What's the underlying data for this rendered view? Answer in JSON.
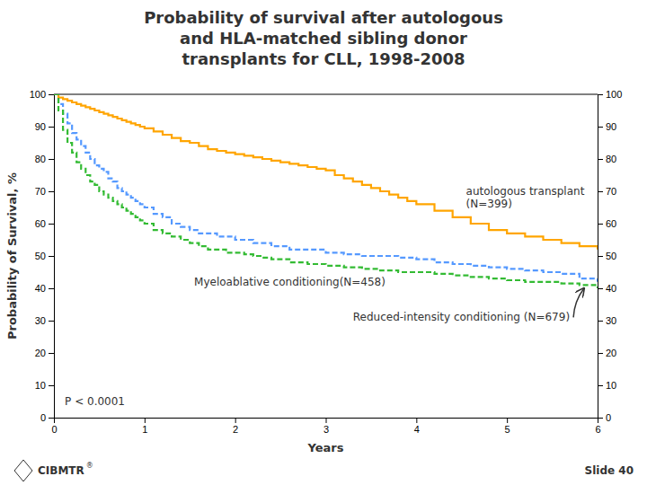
{
  "chart_data": {
    "type": "step",
    "title": "Probability of survival after autologous\nand HLA-matched sibling donor\ntransplants for CLL, 1998-2008",
    "xlabel": "Years",
    "ylabel": "Probability of Survival, %",
    "xlim": [
      0,
      6
    ],
    "ylim": [
      0,
      100
    ],
    "xticks": [
      0,
      1,
      2,
      3,
      4,
      5,
      6
    ],
    "yticks": [
      0,
      10,
      20,
      30,
      40,
      50,
      60,
      70,
      80,
      90,
      100
    ],
    "y2lim": [
      0,
      100
    ],
    "y2ticks": [
      0,
      10,
      20,
      30,
      40,
      50,
      60,
      70,
      80,
      90,
      100
    ],
    "grid": false,
    "annotations": [
      "P < 0.0001",
      "CIBMTR",
      "®",
      "Slide 40"
    ],
    "series": [
      {
        "name": "autologous transplant\n(N=399)",
        "color": "#FFA500",
        "line_style": "solid",
        "x": [
          0.0,
          0.05,
          0.1,
          0.15,
          0.2,
          0.25,
          0.3,
          0.35,
          0.4,
          0.45,
          0.5,
          0.55,
          0.6,
          0.65,
          0.7,
          0.75,
          0.8,
          0.85,
          0.9,
          0.95,
          1.0,
          1.1,
          1.2,
          1.3,
          1.4,
          1.5,
          1.6,
          1.7,
          1.8,
          1.9,
          2.0,
          2.1,
          2.2,
          2.3,
          2.4,
          2.5,
          2.6,
          2.7,
          2.8,
          2.9,
          3.0,
          3.1,
          3.2,
          3.3,
          3.4,
          3.5,
          3.6,
          3.7,
          3.8,
          3.9,
          4.0,
          4.2,
          4.4,
          4.6,
          4.8,
          5.0,
          5.2,
          5.4,
          5.6,
          5.8,
          6.0
        ],
        "values": [
          100,
          99,
          98.5,
          98,
          97.5,
          97,
          96.5,
          96,
          95.5,
          95,
          94.5,
          94,
          93.5,
          93,
          92.5,
          92,
          91.5,
          91,
          90.5,
          90,
          89.5,
          88.5,
          87.5,
          86.5,
          85.5,
          85,
          84,
          83,
          82.5,
          82,
          81.5,
          81,
          80.5,
          80,
          79.5,
          79,
          78.5,
          78,
          77.5,
          77,
          76.5,
          75,
          74,
          73,
          72,
          71,
          70,
          69,
          68,
          67,
          66,
          64,
          62,
          60,
          58,
          57,
          56,
          55,
          54,
          53,
          52
        ]
      },
      {
        "name": "Myeloablative conditioning(N=458)",
        "color": "#5599FF",
        "line_style": "dashed",
        "x": [
          0.0,
          0.05,
          0.1,
          0.15,
          0.2,
          0.25,
          0.3,
          0.35,
          0.4,
          0.45,
          0.5,
          0.55,
          0.6,
          0.65,
          0.7,
          0.75,
          0.8,
          0.85,
          0.9,
          0.95,
          1.0,
          1.1,
          1.2,
          1.3,
          1.4,
          1.5,
          1.6,
          1.7,
          1.8,
          1.9,
          2.0,
          2.1,
          2.2,
          2.3,
          2.4,
          2.6,
          2.8,
          3.0,
          3.2,
          3.4,
          3.6,
          3.8,
          4.0,
          4.2,
          4.4,
          4.6,
          4.8,
          5.0,
          5.2,
          5.4,
          5.6,
          5.8,
          6.0
        ],
        "values": [
          100,
          97,
          94,
          91,
          88,
          86,
          84,
          82,
          80,
          78,
          77,
          76,
          74,
          73,
          71,
          70,
          69,
          68,
          67,
          66,
          65,
          63,
          62,
          60,
          59,
          58,
          57,
          57,
          56,
          56,
          55,
          55,
          54,
          54,
          53,
          52,
          52,
          51,
          50.5,
          50,
          50,
          49.5,
          49,
          48,
          47.5,
          47,
          46.5,
          46,
          45.5,
          45,
          44.5,
          43,
          42
        ]
      },
      {
        "name": "Reduced-intensity conditioning (N=679)",
        "color": "#33BB33",
        "line_style": "dashed",
        "x": [
          0.0,
          0.05,
          0.1,
          0.15,
          0.2,
          0.25,
          0.3,
          0.35,
          0.4,
          0.45,
          0.5,
          0.55,
          0.6,
          0.65,
          0.7,
          0.75,
          0.8,
          0.85,
          0.9,
          0.95,
          1.0,
          1.1,
          1.2,
          1.3,
          1.4,
          1.5,
          1.6,
          1.7,
          1.8,
          1.9,
          2.0,
          2.1,
          2.2,
          2.3,
          2.4,
          2.6,
          2.8,
          3.0,
          3.2,
          3.4,
          3.6,
          3.8,
          4.0,
          4.2,
          4.4,
          4.6,
          4.8,
          5.0,
          5.2,
          5.4,
          5.6,
          5.8,
          6.0
        ],
        "values": [
          100,
          95,
          89,
          85,
          82,
          79,
          77,
          75,
          73,
          72,
          70,
          69,
          68,
          67,
          66,
          65,
          64,
          63,
          62,
          61,
          60,
          58,
          57,
          56,
          55,
          54,
          53,
          52,
          52,
          51,
          51,
          50.5,
          50,
          49.5,
          49,
          48,
          47.5,
          47,
          46.5,
          46,
          45.5,
          45,
          45,
          44.5,
          44,
          43.5,
          43,
          42.5,
          42,
          42,
          41.5,
          41,
          40
        ]
      }
    ]
  }
}
